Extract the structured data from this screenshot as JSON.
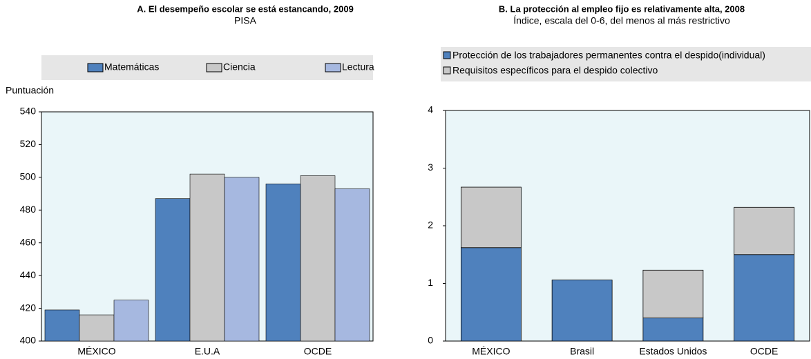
{
  "chart_data": [
    {
      "type": "bar",
      "title": "A. El desempeño escolar se está estancando, 2009",
      "subtitle": "PISA",
      "y_label": "Puntuación",
      "categories": [
        "MÉXICO",
        "E.U.A",
        "OCDE"
      ],
      "series": [
        {
          "name": "Matemáticas",
          "color": "#4f81bd",
          "values": [
            419,
            487,
            496
          ]
        },
        {
          "name": "Ciencia",
          "color": "#c8c8c8",
          "values": [
            416,
            502,
            501
          ]
        },
        {
          "name": "Lectura",
          "color": "#a6b8e0",
          "values": [
            425,
            500,
            493
          ]
        }
      ],
      "ylim": [
        400,
        540
      ],
      "yticks": [
        400,
        420,
        440,
        460,
        480,
        500,
        520,
        540
      ]
    },
    {
      "type": "stacked_bar",
      "title": "B. La protección al empleo fijo es relativamente alta, 2008",
      "subtitle": "Índice, escala del 0-6, del menos al más restrictivo",
      "categories": [
        "MÉXICO",
        "Brasil",
        "Estados Unidos",
        "OCDE"
      ],
      "series": [
        {
          "name": "Protección de los trabajadores permanentes contra el despido(individual)",
          "color": "#4f81bd",
          "values": [
            1.62,
            1.06,
            0.4,
            1.5
          ]
        },
        {
          "name": "Requisitos específicos para el despido colectivo",
          "color": "#c8c8c8",
          "values": [
            1.05,
            0,
            0.83,
            0.82
          ]
        }
      ],
      "ylim": [
        0,
        4
      ],
      "yticks": [
        0,
        1,
        2,
        3,
        4
      ]
    }
  ]
}
